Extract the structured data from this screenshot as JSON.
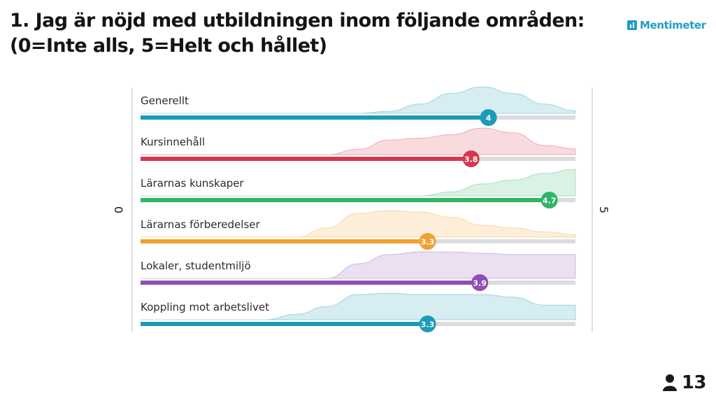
{
  "header": {
    "title": "1. Jag är nöjd med utbildningen inom följande områden: (0=Inte alls, 5=Helt och hållet)",
    "brand": "Mentimeter",
    "brand_color": "#1fa0c4",
    "brand_icon": "mentimeter-logo-icon"
  },
  "footer": {
    "participants": "13",
    "participants_icon": "person-icon"
  },
  "chart_data": {
    "type": "scale",
    "title": "",
    "scale_min_label": "0",
    "scale_max_label": "5",
    "xlim": [
      0,
      5
    ],
    "items": [
      {
        "label": "Generellt",
        "value": 4,
        "value_label": "4",
        "color": "#1a9bb7",
        "distribution": [
          0,
          0,
          0,
          0,
          0,
          0,
          0,
          0,
          0.08,
          0.35,
          0.75,
          1.0,
          0.75,
          0.35,
          0.1
        ]
      },
      {
        "label": "Kursinnehåll",
        "value": 3.8,
        "value_label": "3.8",
        "color": "#d7374d",
        "distribution": [
          0,
          0,
          0,
          0,
          0,
          0,
          0,
          0.2,
          0.55,
          0.62,
          0.75,
          1.0,
          0.82,
          0.35,
          0.22
        ]
      },
      {
        "label": "Lärarnas kunskaper",
        "value": 4.7,
        "value_label": "4.7",
        "color": "#2fb566",
        "distribution": [
          0,
          0,
          0,
          0,
          0,
          0,
          0,
          0,
          0,
          0,
          0.15,
          0.45,
          0.6,
          0.85,
          1.0
        ]
      },
      {
        "label": "Lärarnas förberedelser",
        "value": 3.3,
        "value_label": "3.3",
        "color": "#f0a22f",
        "distribution": [
          0,
          0,
          0,
          0,
          0,
          0,
          0.35,
          0.9,
          1.0,
          0.95,
          0.75,
          0.45,
          0.35,
          0.2,
          0.1
        ]
      },
      {
        "label": "Lokaler, studentmiljö",
        "value": 3.9,
        "value_label": "3.9",
        "color": "#8e4fb5",
        "distribution": [
          0,
          0,
          0,
          0,
          0,
          0,
          0,
          0.55,
          0.9,
          1.0,
          1.0,
          0.95,
          0.9,
          0.9,
          0.9
        ]
      },
      {
        "label": "Koppling mot arbetslivet",
        "value": 3.3,
        "value_label": "3.3",
        "color": "#1a9bb7",
        "distribution": [
          0,
          0,
          0,
          0,
          0,
          0.2,
          0.5,
          0.95,
          1.0,
          0.95,
          0.95,
          0.95,
          0.85,
          0.55,
          0.55
        ]
      }
    ]
  }
}
